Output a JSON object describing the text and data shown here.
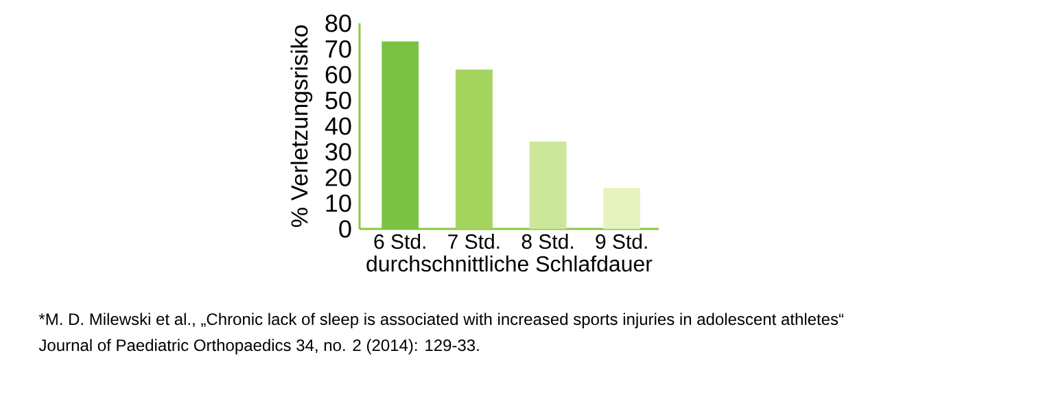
{
  "chart_data": {
    "type": "bar",
    "categories": [
      "6 Std.",
      "7 Std.",
      "8 Std.",
      "9 Std."
    ],
    "values": [
      73,
      62,
      34,
      16
    ],
    "colors": [
      "#7cc242",
      "#a6d55f",
      "#cce79a",
      "#e6f3c0"
    ],
    "ylim": [
      0,
      80
    ],
    "yticks": [
      0,
      10,
      20,
      30,
      40,
      50,
      60,
      70,
      80
    ],
    "xlabel": "durchschnittliche Schlafdauer",
    "ylabel": "% Verletzungsrisiko",
    "grid": false,
    "annotations": [
      "*M. D. Milewski et al., „Chronic lack of sleep is associated with increased sports injuries in adolescent athletes“",
      "Journal of Paediatric Orthopaedics 34, no. 2 (2014): 129-33."
    ]
  }
}
